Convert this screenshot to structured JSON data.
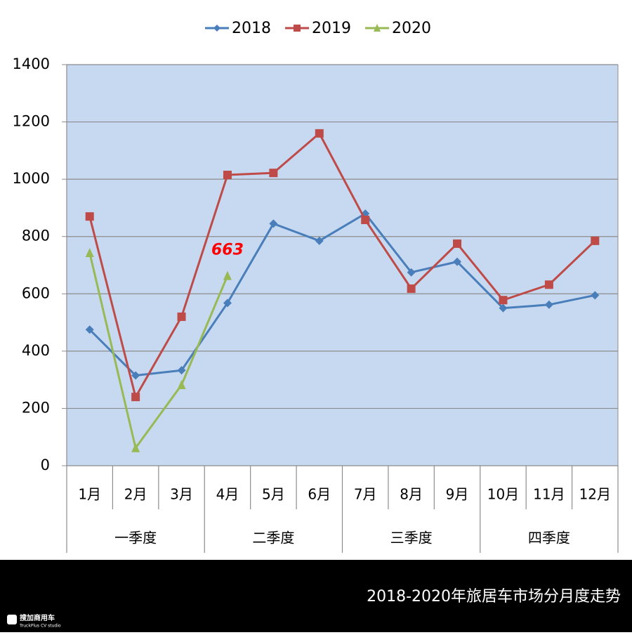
{
  "chart_data": {
    "type": "line",
    "categories": [
      "1月",
      "2月",
      "3月",
      "4月",
      "5月",
      "6月",
      "7月",
      "8月",
      "9月",
      "10月",
      "11月",
      "12月"
    ],
    "groups": [
      "一季度",
      "二季度",
      "三季度",
      "四季度"
    ],
    "series": [
      {
        "name": "2018",
        "color": "#4a7ebb",
        "marker": "diamond",
        "values": [
          475,
          315,
          333,
          568,
          845,
          785,
          880,
          675,
          712,
          550,
          562,
          595
        ]
      },
      {
        "name": "2019",
        "color": "#be4b48",
        "marker": "square",
        "values": [
          870,
          240,
          520,
          1015,
          1022,
          1160,
          858,
          618,
          775,
          578,
          632,
          785
        ]
      },
      {
        "name": "2020",
        "color": "#98b954",
        "marker": "triangle",
        "values": [
          743,
          62,
          282,
          663,
          null,
          null,
          null,
          null,
          null,
          null,
          null,
          null
        ],
        "value_labels": [
          null,
          null,
          null,
          "663",
          null,
          null,
          null,
          null,
          null,
          null,
          null,
          null
        ]
      }
    ],
    "ylim": [
      0,
      1400
    ],
    "yticks": [
      0,
      200,
      400,
      600,
      800,
      1000,
      1200,
      1400
    ],
    "grid": true,
    "legend": "top",
    "plot_background": "#c6d9f0"
  },
  "footer": {
    "caption": "2018-2020年旅居车市场分月度走势",
    "logo": "搜加商用车",
    "logo_sub": "TruckPlus CV studio"
  }
}
